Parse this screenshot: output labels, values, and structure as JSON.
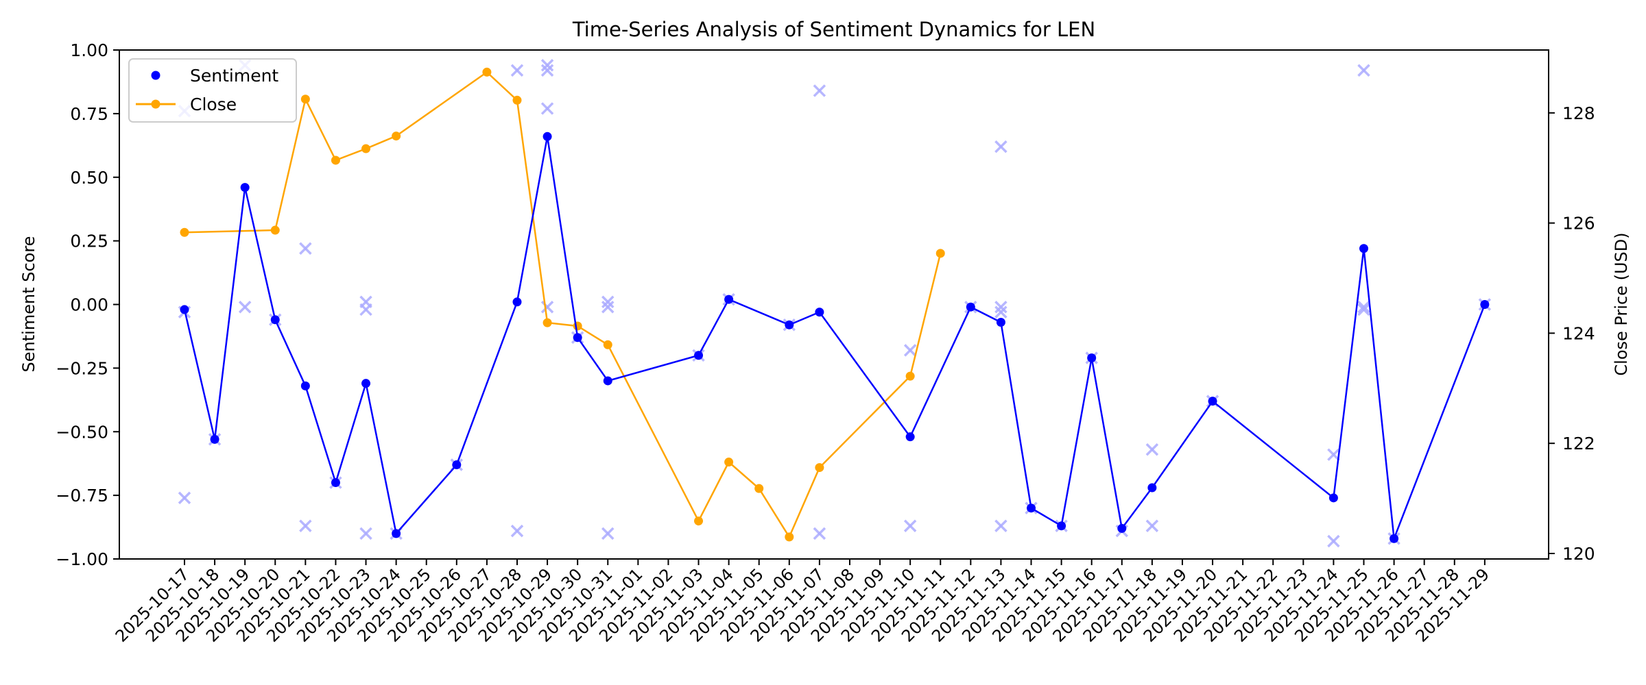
{
  "chart_data": {
    "type": "line",
    "title": "Time-Series Analysis of Sentiment Dynamics for LEN",
    "xlabel": "",
    "ylabel": "Sentiment Score",
    "y2label": "Close Price (USD)",
    "ylim": [
      -1.0,
      1.0
    ],
    "y2lim": [
      119.95,
      129.1
    ],
    "yticks": [
      "1.00",
      "0.75",
      "0.50",
      "0.25",
      "0.00",
      "−0.25",
      "−0.50",
      "−0.75",
      "−1.00"
    ],
    "y2ticks": [
      "128",
      "126",
      "124",
      "122",
      "120"
    ],
    "grid": false,
    "legend": {
      "position": "upper left",
      "entries": [
        "Sentiment",
        "Close"
      ]
    },
    "x_ticks": [
      "2025-10-17",
      "2025-10-18",
      "2025-10-19",
      "2025-10-20",
      "2025-10-21",
      "2025-10-22",
      "2025-10-23",
      "2025-10-24",
      "2025-10-25",
      "2025-10-26",
      "2025-10-27",
      "2025-10-28",
      "2025-10-29",
      "2025-10-30",
      "2025-10-31",
      "2025-11-01",
      "2025-11-02",
      "2025-11-03",
      "2025-11-04",
      "2025-11-05",
      "2025-11-06",
      "2025-11-07",
      "2025-11-08",
      "2025-11-09",
      "2025-11-10",
      "2025-11-11",
      "2025-11-12",
      "2025-11-13",
      "2025-11-14",
      "2025-11-15",
      "2025-11-16",
      "2025-11-17",
      "2025-11-18",
      "2025-11-19",
      "2025-11-20",
      "2025-11-21",
      "2025-11-22",
      "2025-11-23",
      "2025-11-24",
      "2025-11-25",
      "2025-11-26",
      "2025-11-27",
      "2025-11-28",
      "2025-11-29"
    ],
    "series": [
      {
        "name": "Sentiment",
        "axis": "left",
        "color": "#0000ff",
        "style": "line+dot",
        "points": [
          [
            "2025-10-17",
            -0.02
          ],
          [
            "2025-10-18",
            -0.53
          ],
          [
            "2025-10-19",
            0.46
          ],
          [
            "2025-10-20",
            -0.06
          ],
          [
            "2025-10-21",
            -0.32
          ],
          [
            "2025-10-22",
            -0.7
          ],
          [
            "2025-10-23",
            -0.31
          ],
          [
            "2025-10-24",
            -0.9
          ],
          [
            "2025-10-26",
            -0.63
          ],
          [
            "2025-10-28",
            0.01
          ],
          [
            "2025-10-29",
            0.66
          ],
          [
            "2025-10-30",
            -0.13
          ],
          [
            "2025-10-31",
            -0.3
          ],
          [
            "2025-11-03",
            -0.2
          ],
          [
            "2025-11-04",
            0.02
          ],
          [
            "2025-11-06",
            -0.08
          ],
          [
            "2025-11-07",
            -0.03
          ],
          [
            "2025-11-10",
            -0.52
          ],
          [
            "2025-11-12",
            -0.01
          ],
          [
            "2025-11-13",
            -0.07
          ],
          [
            "2025-11-14",
            -0.8
          ],
          [
            "2025-11-15",
            -0.87
          ],
          [
            "2025-11-16",
            -0.21
          ],
          [
            "2025-11-17",
            -0.88
          ],
          [
            "2025-11-18",
            -0.72
          ],
          [
            "2025-11-20",
            -0.38
          ],
          [
            "2025-11-24",
            -0.76
          ],
          [
            "2025-11-25",
            0.22
          ],
          [
            "2025-11-26",
            -0.92
          ],
          [
            "2025-11-29",
            0.0
          ]
        ]
      },
      {
        "name": "Close",
        "axis": "right",
        "color": "#ffa500",
        "style": "line+dot",
        "points": [
          [
            "2025-10-17",
            125.83
          ],
          [
            "2025-10-20",
            125.87
          ],
          [
            "2025-10-21",
            128.25
          ],
          [
            "2025-10-22",
            127.14
          ],
          [
            "2025-10-23",
            127.35
          ],
          [
            "2025-10-24",
            127.58
          ],
          [
            "2025-10-27",
            128.74
          ],
          [
            "2025-10-28",
            128.23
          ],
          [
            "2025-10-29",
            124.19
          ],
          [
            "2025-10-30",
            124.13
          ],
          [
            "2025-10-31",
            123.79
          ],
          [
            "2025-11-03",
            120.59
          ],
          [
            "2025-11-04",
            121.66
          ],
          [
            "2025-11-05",
            121.18
          ],
          [
            "2025-11-06",
            120.3
          ],
          [
            "2025-11-07",
            121.56
          ],
          [
            "2025-11-10",
            123.22
          ],
          [
            "2025-11-11",
            125.45
          ]
        ]
      },
      {
        "name": "Individual sentiment scores",
        "axis": "left",
        "color": "#aaaaff",
        "style": "x-marker",
        "in_legend": false,
        "points": [
          [
            "2025-10-17",
            0.76
          ],
          [
            "2025-10-17",
            -0.03
          ],
          [
            "2025-10-17",
            -0.76
          ],
          [
            "2025-10-18",
            -0.53
          ],
          [
            "2025-10-19",
            0.94
          ],
          [
            "2025-10-19",
            -0.01
          ],
          [
            "2025-10-20",
            -0.06
          ],
          [
            "2025-10-21",
            0.22
          ],
          [
            "2025-10-21",
            -0.87
          ],
          [
            "2025-10-22",
            -0.7
          ],
          [
            "2025-10-23",
            0.01
          ],
          [
            "2025-10-23",
            -0.02
          ],
          [
            "2025-10-23",
            -0.9
          ],
          [
            "2025-10-24",
            -0.9
          ],
          [
            "2025-10-26",
            -0.63
          ],
          [
            "2025-10-28",
            0.92
          ],
          [
            "2025-10-28",
            -0.89
          ],
          [
            "2025-10-29",
            0.94
          ],
          [
            "2025-10-29",
            0.92
          ],
          [
            "2025-10-29",
            0.77
          ],
          [
            "2025-10-29",
            -0.01
          ],
          [
            "2025-10-30",
            -0.13
          ],
          [
            "2025-10-31",
            0.01
          ],
          [
            "2025-10-31",
            -0.01
          ],
          [
            "2025-10-31",
            -0.9
          ],
          [
            "2025-11-03",
            -0.2
          ],
          [
            "2025-11-04",
            0.02
          ],
          [
            "2025-11-06",
            -0.08
          ],
          [
            "2025-11-07",
            0.84
          ],
          [
            "2025-11-07",
            -0.9
          ],
          [
            "2025-11-10",
            -0.18
          ],
          [
            "2025-11-10",
            -0.87
          ],
          [
            "2025-11-12",
            -0.01
          ],
          [
            "2025-11-13",
            0.62
          ],
          [
            "2025-11-13",
            -0.01
          ],
          [
            "2025-11-13",
            -0.03
          ],
          [
            "2025-11-13",
            -0.87
          ],
          [
            "2025-11-14",
            -0.8
          ],
          [
            "2025-11-15",
            -0.87
          ],
          [
            "2025-11-16",
            -0.21
          ],
          [
            "2025-11-17",
            -0.89
          ],
          [
            "2025-11-18",
            -0.57
          ],
          [
            "2025-11-18",
            -0.87
          ],
          [
            "2025-11-20",
            -0.38
          ],
          [
            "2025-11-24",
            -0.59
          ],
          [
            "2025-11-24",
            -0.93
          ],
          [
            "2025-11-25",
            0.92
          ],
          [
            "2025-11-25",
            -0.01
          ],
          [
            "2025-11-25",
            -0.02
          ],
          [
            "2025-11-26",
            -0.92
          ],
          [
            "2025-11-29",
            0.0
          ]
        ]
      }
    ]
  }
}
